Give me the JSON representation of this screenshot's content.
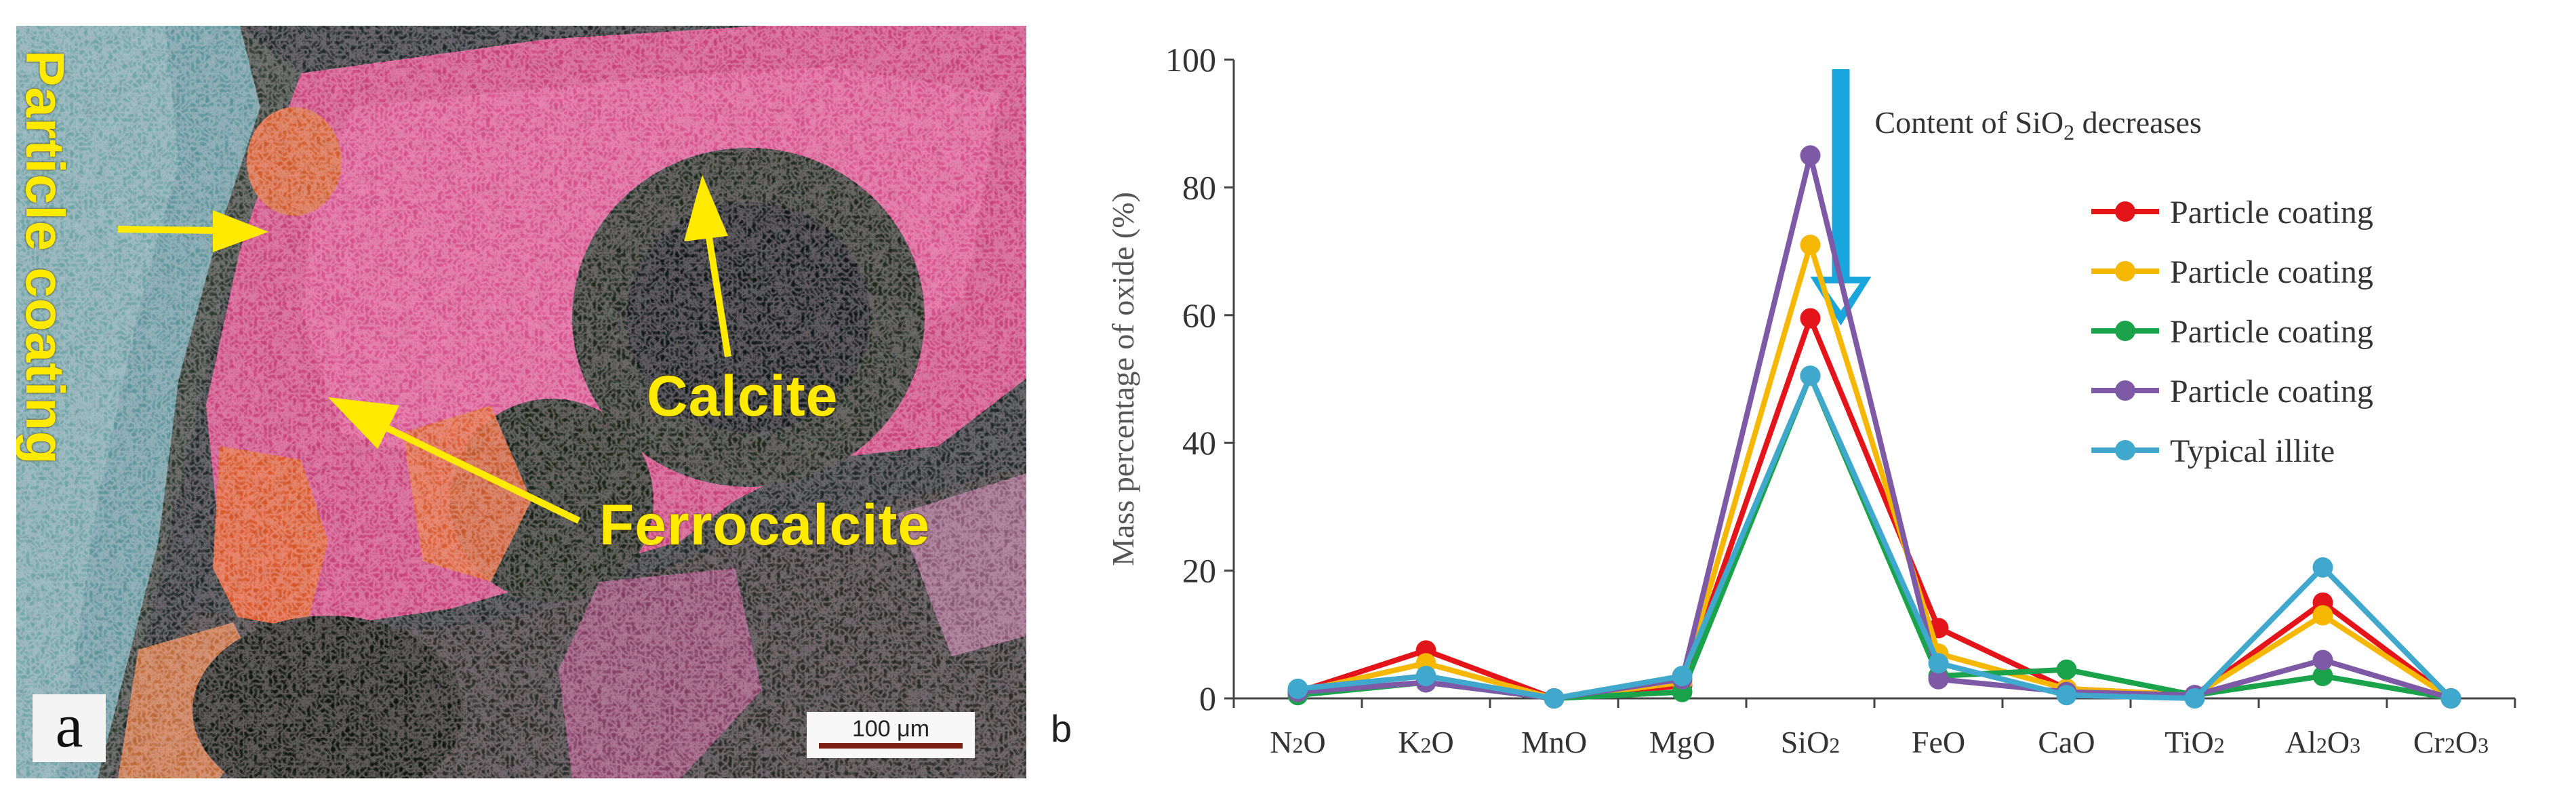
{
  "panel_a": {
    "panel_letter": "a",
    "labels": {
      "particle_coating": "Particle coating",
      "calcite": "Calcite",
      "ferrocalcite": "Ferrocalcite"
    },
    "scale_bar": "100 μm",
    "label_color": "#ffea00"
  },
  "panel_b": {
    "panel_letter": "b",
    "annotation": {
      "text_prefix": "Content of SiO",
      "text_sub": "2",
      "text_suffix": " decreases",
      "arrow_color": "#19a6dc"
    }
  },
  "chart_data": {
    "type": "line",
    "title": "",
    "xlabel": "",
    "ylabel": "Mass percentage of oxide (%)",
    "ylim": [
      0,
      100
    ],
    "yticks": [
      0,
      20,
      40,
      60,
      80,
      100
    ],
    "categories": [
      {
        "base": "N",
        "sub": "2",
        "tail": "O"
      },
      {
        "base": "K",
        "sub": "2",
        "tail": "O"
      },
      {
        "base": "MnO",
        "sub": "",
        "tail": ""
      },
      {
        "base": "MgO",
        "sub": "",
        "tail": ""
      },
      {
        "base": "SiO",
        "sub": "2",
        "tail": ""
      },
      {
        "base": "FeO",
        "sub": "",
        "tail": ""
      },
      {
        "base": "CaO",
        "sub": "",
        "tail": ""
      },
      {
        "base": "TiO",
        "sub": "2",
        "tail": ""
      },
      {
        "base": "Al",
        "sub": "2",
        "tail": "O",
        "sub2": "3"
      },
      {
        "base": "Cr",
        "sub": "2",
        "tail": "O",
        "sub2": "3"
      }
    ],
    "legend_position": "right",
    "series": [
      {
        "name": "Particle coating",
        "color": "#e3151a",
        "values": [
          1,
          7.5,
          0,
          2,
          59.5,
          11,
          1.5,
          0.5,
          15,
          0
        ]
      },
      {
        "name": "Particle coating",
        "color": "#f5b700",
        "values": [
          1,
          5.5,
          0,
          2.5,
          71,
          7,
          1.5,
          0.5,
          13,
          0
        ]
      },
      {
        "name": "Particle coating",
        "color": "#1aa34a",
        "values": [
          0.5,
          2.5,
          0,
          1,
          50.5,
          3.5,
          4.5,
          0.5,
          3.5,
          0
        ]
      },
      {
        "name": "Particle coating",
        "color": "#7e5aa6",
        "values": [
          1,
          2.5,
          0,
          3,
          85,
          3,
          1,
          0.5,
          6,
          0
        ]
      },
      {
        "name": "Typical illite",
        "color": "#40a8cc",
        "values": [
          1.5,
          3.5,
          0,
          3.5,
          50.5,
          5.5,
          0.5,
          0,
          20.5,
          0
        ]
      }
    ]
  }
}
